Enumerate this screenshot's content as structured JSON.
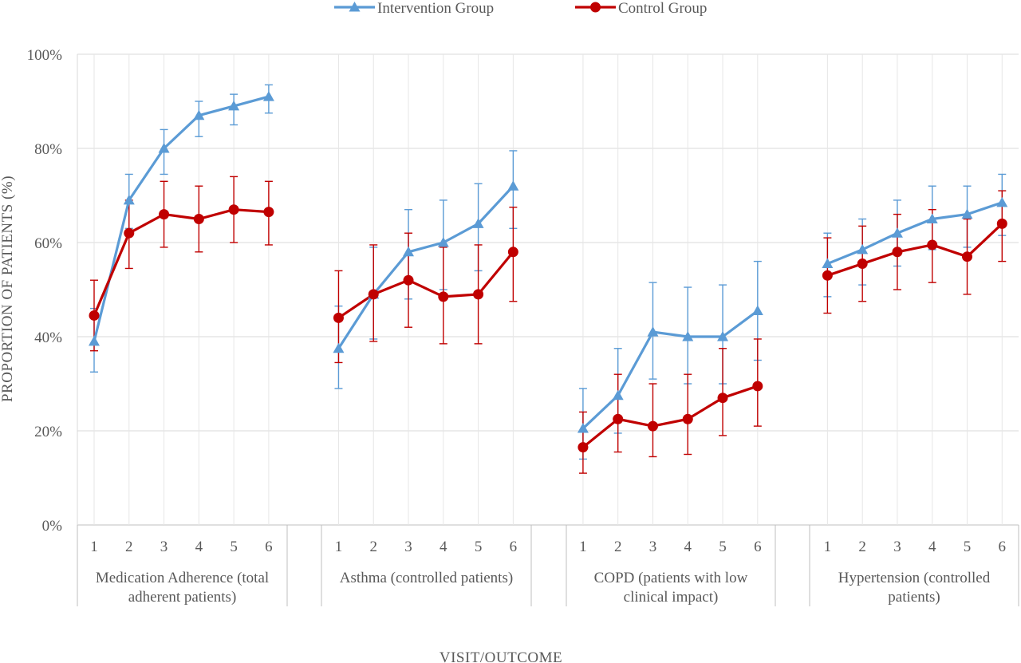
{
  "chart_data": {
    "type": "line",
    "xlabel": "VISIT/OUTCOME",
    "ylabel": "PROPORTION OF PATIENTS (%)",
    "ylim": [
      0,
      100
    ],
    "y_ticks": [
      "0%",
      "20%",
      "40%",
      "60%",
      "80%",
      "100%"
    ],
    "grid": "horizontal and vertical",
    "legend": {
      "placement": "top-center"
    },
    "visit_labels": [
      "1",
      "2",
      "3",
      "4",
      "5",
      "6"
    ],
    "groups": [
      {
        "label_lines": [
          "Medication Adherence (total",
          "adherent patients)"
        ]
      },
      {
        "label_lines": [
          "Asthma (controlled patients)"
        ]
      },
      {
        "label_lines": [
          "COPD (patients with low",
          "clinical impact)"
        ]
      },
      {
        "label_lines": [
          "Hypertension (controlled",
          "patients)"
        ]
      }
    ],
    "series": [
      {
        "name": "Intervention Group",
        "color": "#5B9BD5",
        "marker": "triangle",
        "groups": [
          {
            "values": [
              39,
              69,
              80,
              87,
              89,
              91
            ],
            "low": [
              32.5,
              63,
              74.5,
              82.5,
              85,
              87.5
            ],
            "high": [
              46,
              74.5,
              84,
              90,
              91.5,
              93.5
            ]
          },
          {
            "values": [
              37.5,
              49,
              58,
              60,
              64,
              72
            ],
            "low": [
              29,
              39.5,
              48,
              50,
              54,
              63
            ],
            "high": [
              46.5,
              59,
              67,
              69,
              72.5,
              79.5
            ]
          },
          {
            "values": [
              20.5,
              27.5,
              41,
              40,
              40,
              45.5
            ],
            "low": [
              14,
              19.5,
              31,
              30,
              30,
              35
            ],
            "high": [
              29,
              37.5,
              51.5,
              50.5,
              51,
              56
            ]
          },
          {
            "values": [
              55.5,
              58.5,
              62,
              65,
              66,
              68.5
            ],
            "low": [
              48.5,
              51,
              55,
              58.5,
              59,
              61.5
            ],
            "high": [
              62,
              65,
              69,
              72,
              72,
              74.5
            ]
          }
        ]
      },
      {
        "name": "Control Group",
        "color": "#C00000",
        "marker": "circle",
        "groups": [
          {
            "values": [
              44.5,
              62,
              66,
              65,
              67,
              66.5
            ],
            "low": [
              37,
              54.5,
              59,
              58,
              60,
              59.5
            ],
            "high": [
              52,
              69,
              73,
              72,
              74,
              73
            ]
          },
          {
            "values": [
              44,
              49,
              52,
              48.5,
              49,
              58
            ],
            "low": [
              34.5,
              39,
              42,
              38.5,
              38.5,
              47.5
            ],
            "high": [
              54,
              59.5,
              62,
              59,
              59.5,
              67.5
            ]
          },
          {
            "values": [
              16.5,
              22.5,
              21,
              22.5,
              27,
              29.5
            ],
            "low": [
              11,
              15.5,
              14.5,
              15,
              19,
              21
            ],
            "high": [
              24,
              32,
              30,
              32,
              37.5,
              39.5
            ]
          },
          {
            "values": [
              53,
              55.5,
              58,
              59.5,
              57,
              64
            ],
            "low": [
              45,
              47.5,
              50,
              51.5,
              49,
              56
            ],
            "high": [
              61,
              63.5,
              66,
              67,
              65,
              71
            ]
          }
        ]
      }
    ]
  }
}
